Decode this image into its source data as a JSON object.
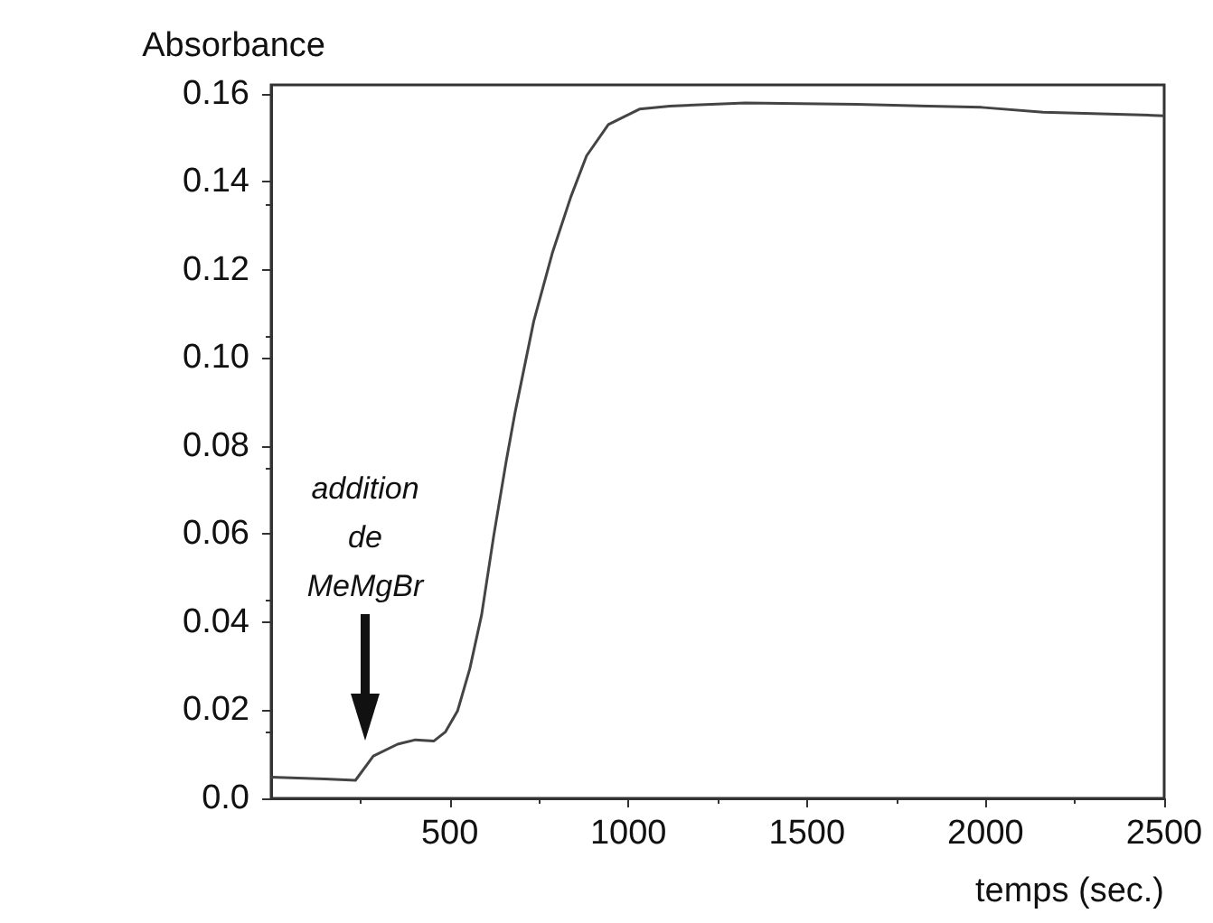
{
  "chart_data": {
    "type": "line",
    "ylabel": "Absorbance",
    "xlabel": "temps (sec.)",
    "x": [
      0,
      150,
      236,
      286,
      354,
      404,
      455,
      488,
      522,
      556,
      589,
      623,
      657,
      683,
      735,
      787,
      839,
      883,
      944,
      1031,
      1116,
      1327,
      1640,
      1989,
      2161,
      2467,
      2500
    ],
    "values": [
      0.0048,
      0.0044,
      0.0041,
      0.0096,
      0.0123,
      0.0133,
      0.013,
      0.0151,
      0.0199,
      0.0294,
      0.0416,
      0.0596,
      0.0761,
      0.0877,
      0.1083,
      0.1238,
      0.1366,
      0.1459,
      0.153,
      0.1565,
      0.1572,
      0.1579,
      0.1576,
      0.1569,
      0.1558,
      0.1551,
      0.155
    ],
    "color": "#444444",
    "marker": "none",
    "line_style": "solid",
    "xlim": [
      0,
      2500
    ],
    "xticks": [
      500,
      1000,
      1500,
      2000,
      2500
    ],
    "ylim": [
      0,
      0.162
    ],
    "yticks": [
      {
        "value": 0,
        "label": "0.0"
      },
      0.02,
      0.04,
      0.06,
      0.08,
      {
        "value": 0.1,
        "label": "0.10"
      },
      0.12,
      0.14,
      0.16
    ],
    "annotations": [
      "addition de MeMgBr"
    ]
  }
}
